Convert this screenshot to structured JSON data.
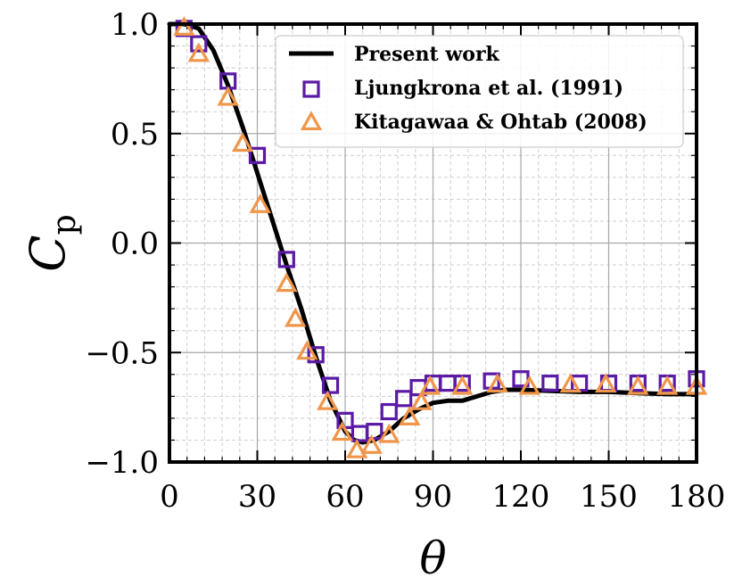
{
  "chart_data": {
    "type": "line",
    "xlabel": "θ",
    "ylabel": "C",
    "ylabel_sub": "p",
    "xlim": [
      0,
      180
    ],
    "ylim": [
      -1.0,
      1.0
    ],
    "xticks": [
      0,
      30,
      60,
      90,
      120,
      150,
      180
    ],
    "xtick_labels": [
      "0",
      "30",
      "60",
      "90",
      "120",
      "150",
      "180"
    ],
    "yticks": [
      -1.0,
      -0.5,
      0.0,
      0.5,
      1.0
    ],
    "ytick_labels": [
      "−1.0",
      "−0.5",
      "0.0",
      "0.5",
      "1.0"
    ],
    "grid": true,
    "legend_position": "top-right",
    "series": [
      {
        "name": "Present work",
        "style": "line",
        "color": "#000000",
        "x": [
          0,
          5,
          10,
          15,
          20,
          25,
          30,
          35,
          40,
          45,
          50,
          55,
          60,
          63,
          66,
          70,
          75,
          80,
          85,
          90,
          95,
          100,
          105,
          110,
          115,
          120,
          130,
          140,
          150,
          160,
          170,
          180
        ],
        "y": [
          1.0,
          1.0,
          0.98,
          0.88,
          0.72,
          0.53,
          0.32,
          0.11,
          -0.1,
          -0.3,
          -0.52,
          -0.72,
          -0.86,
          -0.9,
          -0.91,
          -0.9,
          -0.86,
          -0.8,
          -0.76,
          -0.73,
          -0.72,
          -0.72,
          -0.7,
          -0.68,
          -0.67,
          -0.67,
          -0.675,
          -0.68,
          -0.68,
          -0.685,
          -0.69,
          -0.69
        ]
      },
      {
        "name": "Ljungkrona et al. (1991)",
        "style": "square",
        "color": "#5b1aa6",
        "x": [
          5,
          10,
          20,
          30,
          40,
          50,
          55,
          60,
          65,
          70,
          75,
          80,
          85,
          90,
          95,
          100,
          110,
          120,
          130,
          140,
          150,
          160,
          170,
          180
        ],
        "y": [
          0.98,
          0.91,
          0.74,
          0.4,
          -0.075,
          -0.51,
          -0.65,
          -0.81,
          -0.87,
          -0.86,
          -0.77,
          -0.71,
          -0.66,
          -0.64,
          -0.64,
          -0.64,
          -0.63,
          -0.62,
          -0.64,
          -0.64,
          -0.64,
          -0.64,
          -0.64,
          -0.62
        ]
      },
      {
        "name": "Kitagawaa & Ohtab (2008)",
        "style": "triangle",
        "color": "#f0964a",
        "x": [
          5,
          10,
          20,
          25,
          31,
          40,
          43,
          47,
          54,
          59,
          64,
          69,
          75,
          82,
          86,
          89,
          100,
          112,
          123,
          137,
          149,
          160,
          170,
          180
        ],
        "y": [
          0.98,
          0.86,
          0.66,
          0.45,
          0.17,
          -0.19,
          -0.35,
          -0.5,
          -0.73,
          -0.87,
          -0.95,
          -0.93,
          -0.88,
          -0.8,
          -0.73,
          -0.66,
          -0.66,
          -0.65,
          -0.66,
          -0.65,
          -0.65,
          -0.66,
          -0.66,
          -0.66
        ]
      }
    ]
  }
}
